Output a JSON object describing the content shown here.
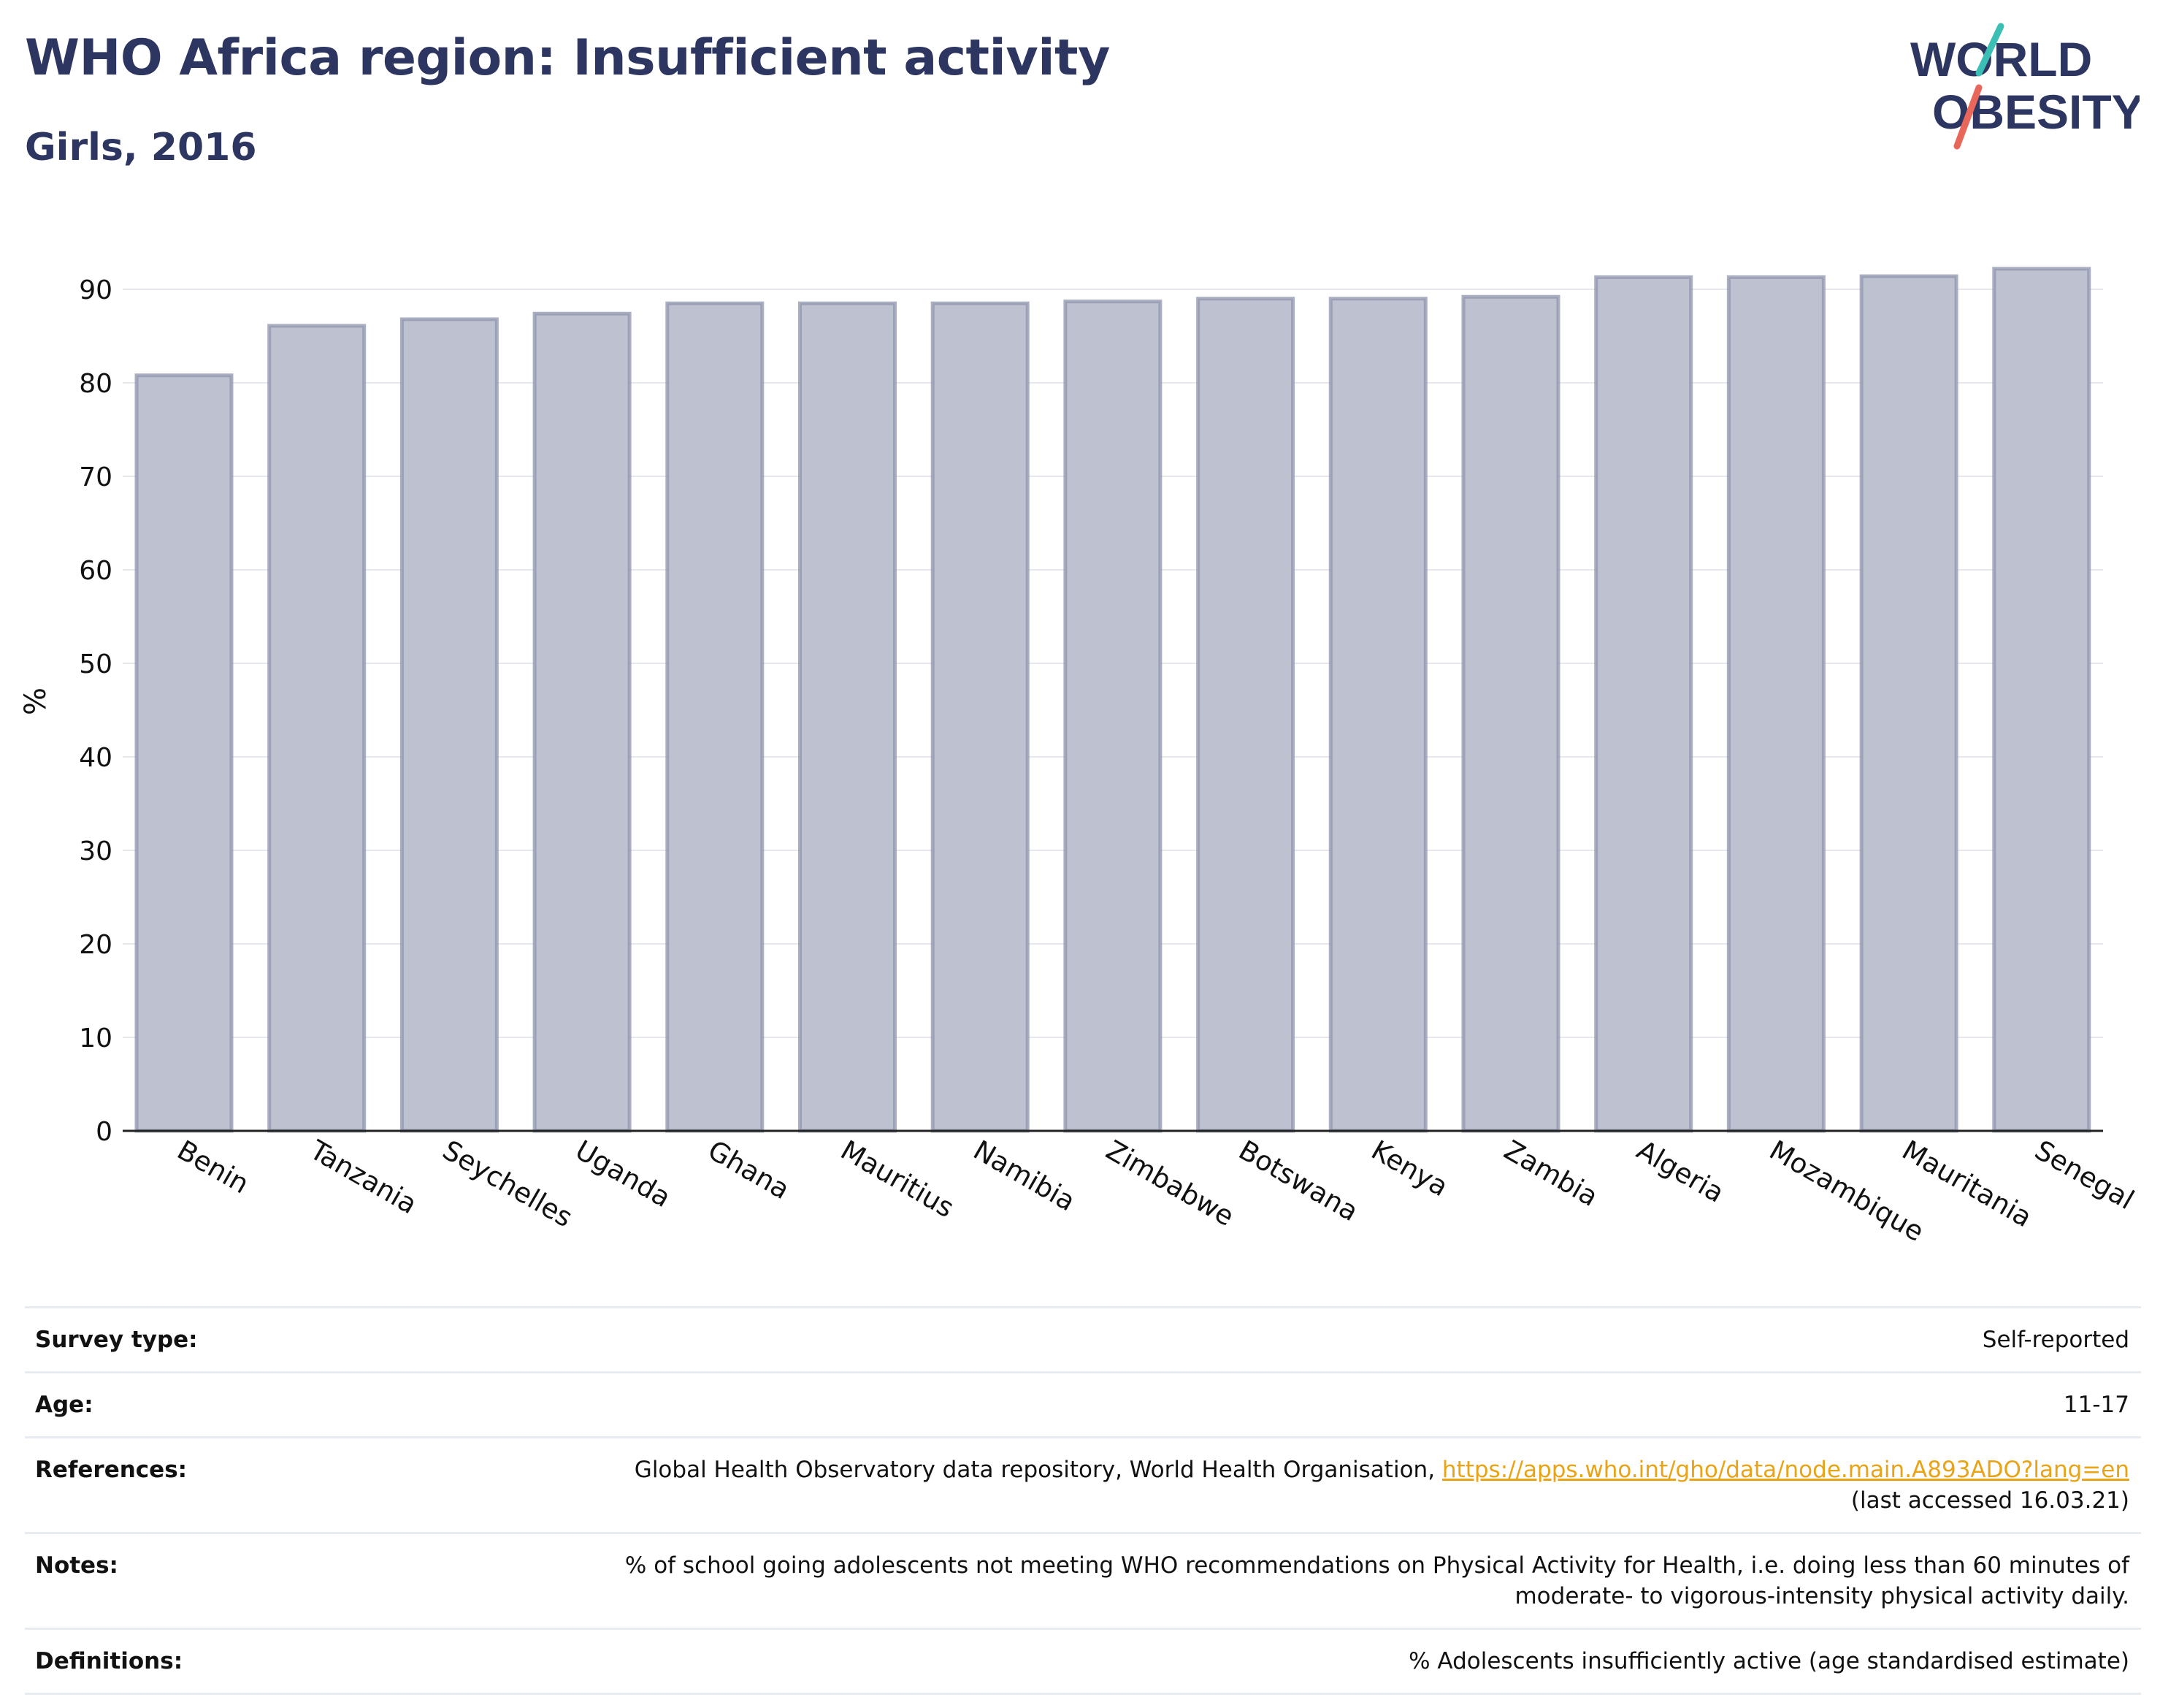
{
  "header": {
    "title": "WHO Africa region: Insufficient activity",
    "subtitle": "Girls, 2016"
  },
  "logo": {
    "line1": "WORLD",
    "line2": "OBESITY",
    "accent_teal": "#3bbfb4",
    "accent_coral": "#e8675a",
    "text_color": "#2c3660"
  },
  "chart_data": {
    "type": "bar",
    "categories": [
      "Benin",
      "Tanzania",
      "Seychelles",
      "Uganda",
      "Ghana",
      "Mauritius",
      "Namibia",
      "Zimbabwe",
      "Botswana",
      "Kenya",
      "Zambia",
      "Algeria",
      "Mozambique",
      "Mauritania",
      "Senegal"
    ],
    "values": [
      80.8,
      86.1,
      86.8,
      87.4,
      88.5,
      88.5,
      88.5,
      88.7,
      89.0,
      89.0,
      89.2,
      91.3,
      91.3,
      91.4,
      92.2
    ],
    "ylabel": "%",
    "xlabel": "",
    "ylim": [
      0,
      95
    ],
    "yticks": [
      0,
      10,
      20,
      30,
      40,
      50,
      60,
      70,
      80,
      90
    ],
    "grid": true,
    "bar_fill": "#bec1cf",
    "bar_stroke": "#8f94ad"
  },
  "meta": [
    {
      "label": "Survey type:",
      "value": "Self-reported"
    },
    {
      "label": "Age:",
      "value": "11-17"
    },
    {
      "label": "References:",
      "value": "Global Health Observatory data repository, World Health Organisation, ",
      "link": "https://apps.who.int/gho/data/node.main.A893ADO?lang=en",
      "value2": "(last accessed 16.03.21)"
    },
    {
      "label": "Notes:",
      "value": "% of school going adolescents not meeting WHO recommendations on Physical Activity for Health, i.e. doing less than 60 minutes of moderate- to vigorous-intensity physical activity daily."
    },
    {
      "label": "Definitions:",
      "value": "% Adolescents insufficiently active (age standardised estimate)"
    }
  ]
}
